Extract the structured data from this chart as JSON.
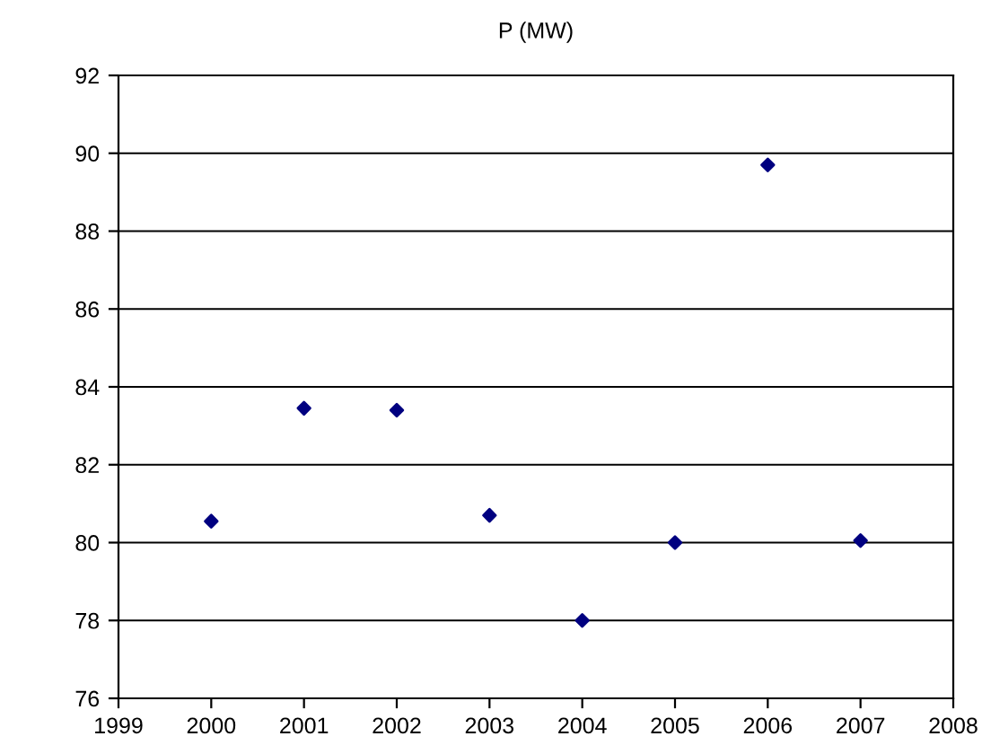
{
  "chart_data": {
    "type": "scatter",
    "title": "P (MW)",
    "x": [
      2000,
      2001,
      2002,
      2003,
      2004,
      2005,
      2006,
      2007
    ],
    "series": [
      {
        "color": "#000080",
        "values": [
          80.55,
          83.45,
          83.4,
          80.7,
          78.0,
          80.0,
          89.7,
          80.05
        ]
      }
    ],
    "xlim": [
      1999,
      2008
    ],
    "xticks": [
      1999,
      2000,
      2001,
      2002,
      2003,
      2004,
      2005,
      2006,
      2007,
      2008
    ],
    "ylim": [
      76,
      92
    ],
    "yticks": [
      76,
      78,
      80,
      82,
      84,
      86,
      88,
      90,
      92
    ],
    "grid": "y",
    "marker": "diamond",
    "legend": false
  }
}
